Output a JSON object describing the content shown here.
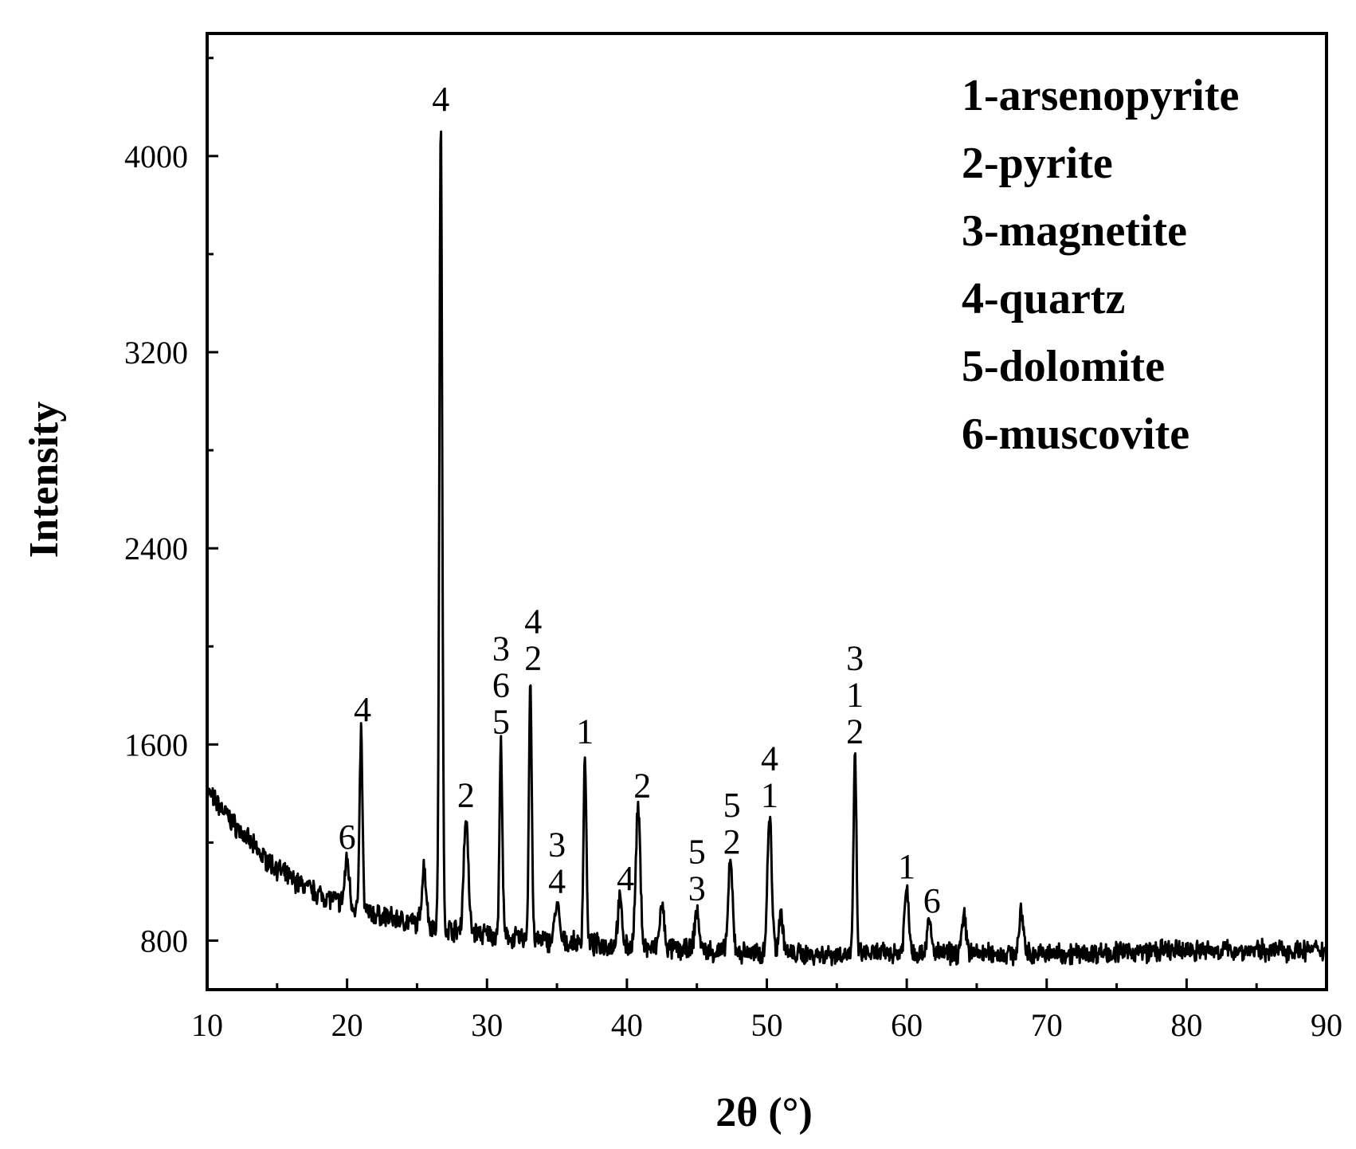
{
  "chart_data": {
    "type": "line",
    "title": "",
    "xlabel": "2θ (°)",
    "ylabel": "Intensity",
    "xlim": [
      10,
      90
    ],
    "ylim": [
      600,
      4500
    ],
    "x_ticks": [
      10,
      20,
      30,
      40,
      50,
      60,
      70,
      80,
      90
    ],
    "y_ticks": [
      800,
      1600,
      2400,
      3200,
      4000
    ],
    "grid": false,
    "legend": {
      "position": "top-right",
      "entries": [
        "1-arsenopyrite",
        "2-pyrite",
        "3-magnetite",
        "4-quartz",
        "5-dolomite",
        "6-muscovite"
      ]
    },
    "series": [
      {
        "color": "#000000",
        "baseline": [
          [
            10,
            1410
          ],
          [
            12,
            1270
          ],
          [
            14,
            1140
          ],
          [
            16,
            1050
          ],
          [
            18,
            990
          ],
          [
            20,
            945
          ],
          [
            22,
            905
          ],
          [
            25,
            870
          ],
          [
            28,
            840
          ],
          [
            32,
            810
          ],
          [
            36,
            790
          ],
          [
            40,
            775
          ],
          [
            45,
            760
          ],
          [
            50,
            745
          ],
          [
            55,
            745
          ],
          [
            60,
            750
          ],
          [
            70,
            745
          ],
          [
            80,
            760
          ],
          [
            90,
            760
          ]
        ],
        "peaks": [
          {
            "x": 20.0,
            "y": 1130
          },
          {
            "x": 21.0,
            "y": 1650
          },
          {
            "x": 25.5,
            "y": 1100
          },
          {
            "x": 26.7,
            "y": 4140
          },
          {
            "x": 28.5,
            "y": 1300
          },
          {
            "x": 31.0,
            "y": 1600
          },
          {
            "x": 33.1,
            "y": 1860
          },
          {
            "x": 35.0,
            "y": 950
          },
          {
            "x": 37.0,
            "y": 1560
          },
          {
            "x": 39.5,
            "y": 960
          },
          {
            "x": 40.8,
            "y": 1340
          },
          {
            "x": 42.5,
            "y": 940
          },
          {
            "x": 45.0,
            "y": 920
          },
          {
            "x": 47.4,
            "y": 1110
          },
          {
            "x": 50.2,
            "y": 1300
          },
          {
            "x": 51.0,
            "y": 910
          },
          {
            "x": 56.3,
            "y": 1560
          },
          {
            "x": 60.0,
            "y": 1010
          },
          {
            "x": 61.6,
            "y": 870
          },
          {
            "x": 64.1,
            "y": 890
          },
          {
            "x": 68.2,
            "y": 910
          }
        ]
      }
    ],
    "peak_labels": [
      {
        "x": 20.0,
        "lines": [
          "6"
        ]
      },
      {
        "x": 21.1,
        "lines": [
          "4"
        ]
      },
      {
        "x": 26.7,
        "lines": [
          "4"
        ]
      },
      {
        "x": 28.5,
        "lines": [
          "2"
        ]
      },
      {
        "x": 31.0,
        "lines": [
          "3",
          "6",
          "5"
        ]
      },
      {
        "x": 33.3,
        "lines": [
          "4",
          "2"
        ]
      },
      {
        "x": 35.0,
        "lines": [
          "3",
          "4"
        ]
      },
      {
        "x": 37.0,
        "lines": [
          "1"
        ]
      },
      {
        "x": 39.9,
        "lines": [
          "4"
        ]
      },
      {
        "x": 41.1,
        "lines": [
          "2"
        ]
      },
      {
        "x": 45.0,
        "lines": [
          "5",
          "3"
        ]
      },
      {
        "x": 47.5,
        "lines": [
          "5",
          "2"
        ]
      },
      {
        "x": 50.2,
        "lines": [
          "4",
          "1"
        ]
      },
      {
        "x": 56.3,
        "lines": [
          "3",
          "1",
          "2"
        ]
      },
      {
        "x": 60.0,
        "lines": [
          "1"
        ]
      },
      {
        "x": 61.8,
        "lines": [
          "6"
        ]
      }
    ]
  }
}
